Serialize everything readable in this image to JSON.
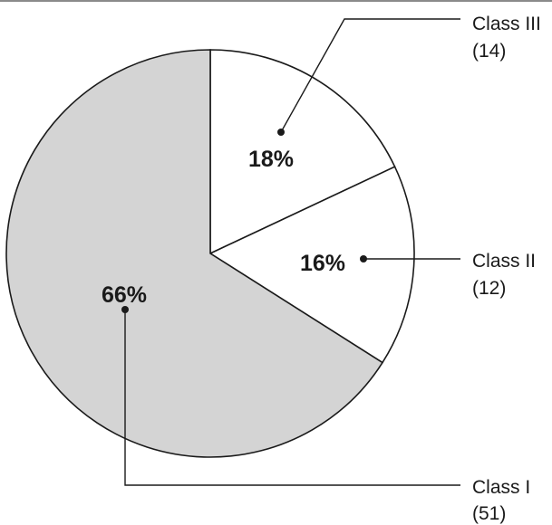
{
  "chart_data": {
    "type": "pie",
    "title": "",
    "slices": [
      {
        "name": "Class III",
        "count_label": "(14)",
        "count": 14,
        "percent": 18,
        "percent_label": "18%",
        "color": "#ffffff"
      },
      {
        "name": "Class II",
        "count_label": "(12)",
        "count": 12,
        "percent": 16,
        "percent_label": "16%",
        "color": "#ffffff"
      },
      {
        "name": "Class I",
        "count_label": "(51)",
        "count": 51,
        "percent": 66,
        "percent_label": "66%",
        "color": "#d4d4d4"
      }
    ],
    "start_angle": "12 o'clock",
    "direction": "clockwise",
    "outline_color": "#1a1a1a",
    "legend": "none"
  }
}
